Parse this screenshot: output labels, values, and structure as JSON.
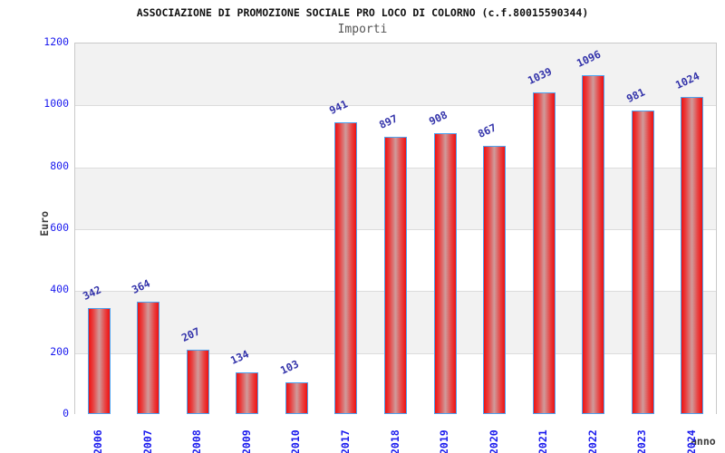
{
  "header": {
    "title": "ASSOCIAZIONE DI PROMOZIONE SOCIALE PRO LOCO DI COLORNO (c.f.80015590344)",
    "subtitle": "Importi"
  },
  "chart_data": {
    "type": "bar",
    "title": "ASSOCIAZIONE DI PROMOZIONE SOCIALE PRO LOCO DI COLORNO (c.f.80015590344)",
    "subtitle": "Importi",
    "categories": [
      "2006",
      "2007",
      "2008",
      "2009",
      "2010",
      "2017",
      "2018",
      "2019",
      "2020",
      "2021",
      "2022",
      "2023",
      "2024"
    ],
    "values": [
      342,
      364,
      207,
      134,
      103,
      941,
      897,
      908,
      867,
      1039,
      1096,
      981,
      1024
    ],
    "xlabel": "anno",
    "ylabel": "Euro",
    "ylim": [
      0,
      1200
    ],
    "yticks": [
      0,
      200,
      400,
      600,
      800,
      1000,
      1200
    ],
    "grid": true,
    "legend_position": "none",
    "band_fill": "alternating horizontal bands from top: gray, white"
  },
  "style": {
    "bar_edge_color": "#ee1111",
    "bar_center_color": "#cf9b9b",
    "bar_border_color": "#4da3f0",
    "tick_label_color": "#1a1aee",
    "value_label_color": "#3333aa",
    "band_color": "#f2f2f2",
    "gridline_color": "#dcdcdc",
    "title_color": "#111111",
    "subtitle_color": "#555555",
    "axis_label_color": "#3a3a3a"
  }
}
